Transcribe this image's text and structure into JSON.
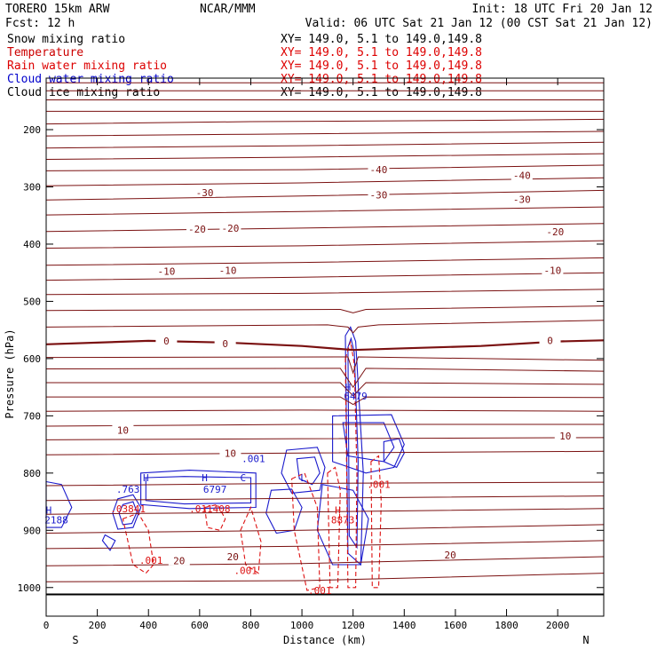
{
  "header": {
    "model": "TORERO  15km ARW",
    "center": "NCAR/MMM",
    "init": "Init: 18 UTC Fri 20 Jan 12",
    "fcst": "Fcst:   12 h",
    "valid": "Valid: 06 UTC Sat 21 Jan 12 (00 CST Sat 21 Jan 12)"
  },
  "legend": [
    {
      "name": "Snow mixing ratio",
      "xy": "XY= 149.0,  5.1 to 149.0,149.8",
      "color": "#000000"
    },
    {
      "name": "Temperature",
      "xy": "XY= 149.0,  5.1 to 149.0,149.8",
      "color": "#cc0000"
    },
    {
      "name": "Rain water mixing ratio",
      "xy": "XY= 149.0,  5.1 to 149.0,149.8",
      "color": "#dd0000"
    },
    {
      "name": "Cloud water mixing ratio",
      "xy": "XY= 149.0,  5.1 to 149.0,149.8",
      "color": "#0000cc"
    },
    {
      "name": "Cloud ice mixing ratio",
      "xy": "XY= 149.0,  5.1 to 149.0,149.8",
      "color": "#000000"
    }
  ],
  "colors": {
    "temperature": "#7a1010",
    "rain": "#dd1111",
    "cloud": "#1a1acc",
    "surface": "#000000"
  },
  "chart_data": {
    "type": "line",
    "xlabel": "Distance (km)",
    "ylabel": "Pressure (hPa)",
    "xlim": [
      0,
      2180
    ],
    "ylim": [
      1050,
      110
    ],
    "x_ticks": [
      0,
      200,
      400,
      600,
      800,
      1000,
      1200,
      1400,
      1600,
      1800,
      2000
    ],
    "y_ticks": [
      200,
      300,
      400,
      500,
      600,
      700,
      800,
      900,
      1000
    ],
    "x_end_labels": {
      "left": "S",
      "right": "N"
    },
    "surface_pressure": 1012,
    "isotherms": [
      {
        "x": [
          0,
          2180
        ],
        "y": [
          118,
          118
        ]
      },
      {
        "x": [
          0,
          2180
        ],
        "y": [
          132,
          132
        ]
      },
      {
        "x": [
          0,
          2180
        ],
        "y": [
          148,
          148
        ]
      },
      {
        "x": [
          0,
          2180
        ],
        "y": [
          168,
          168
        ]
      },
      {
        "x": [
          0,
          800,
          1600,
          2180
        ],
        "y": [
          190,
          186,
          184,
          182
        ]
      },
      {
        "x": [
          0,
          800,
          1600,
          2180
        ],
        "y": [
          211,
          208,
          205,
          203
        ]
      },
      {
        "x": [
          0,
          1000,
          2180
        ],
        "y": [
          232,
          228,
          222
        ]
      },
      {
        "x": [
          0,
          1000,
          2180
        ],
        "y": [
          252,
          248,
          242
        ]
      },
      {
        "x": [
          0,
          1000,
          2180
        ],
        "y": [
          272,
          270,
          262
        ]
      },
      {
        "x": [
          0,
          1000,
          2180
        ],
        "y": [
          298,
          293,
          284
        ]
      },
      {
        "x": [
          0,
          1000,
          2180
        ],
        "y": [
          323,
          316,
          306
        ]
      },
      {
        "x": [
          0,
          1000,
          2180
        ],
        "y": [
          349,
          343,
          335
        ]
      },
      {
        "x": [
          0,
          1000,
          2180
        ],
        "y": [
          378,
          372,
          364
        ]
      },
      {
        "x": [
          0,
          1000,
          2180
        ],
        "y": [
          407,
          403,
          394
        ]
      },
      {
        "x": [
          0,
          1000,
          2180
        ],
        "y": [
          437,
          432,
          424
        ]
      },
      {
        "x": [
          0,
          1000,
          2180
        ],
        "y": [
          463,
          458,
          450
        ]
      },
      {
        "x": [
          0,
          1000,
          2180
        ],
        "y": [
          488,
          486,
          479
        ]
      },
      {
        "x": [
          0,
          1150,
          1200,
          1250,
          2180
        ],
        "y": [
          516,
          514,
          520,
          514,
          508
        ]
      },
      {
        "x": [
          0,
          1100,
          1180,
          1200,
          1220,
          1300,
          2180
        ],
        "y": [
          545,
          541,
          545,
          555,
          545,
          541,
          533
        ]
      },
      {
        "x": [
          0,
          1180,
          1200,
          1220,
          2180
        ],
        "y": [
          598,
          597,
          625,
          597,
          603
        ]
      },
      {
        "x": [
          0,
          1150,
          1200,
          1250,
          2180
        ],
        "y": [
          618,
          617,
          650,
          617,
          622
        ]
      },
      {
        "x": [
          0,
          1150,
          1200,
          1250,
          2180
        ],
        "y": [
          642,
          642,
          665,
          642,
          645
        ]
      },
      {
        "x": [
          0,
          1150,
          1200,
          1250,
          2180
        ],
        "y": [
          667,
          667,
          680,
          667,
          668
        ]
      },
      {
        "x": [
          0,
          1000,
          2180
        ],
        "y": [
          692,
          690,
          692
        ]
      },
      {
        "x": [
          0,
          1000,
          2180
        ],
        "y": [
          718,
          715,
          715
        ]
      },
      {
        "x": [
          0,
          1000,
          2180
        ],
        "y": [
          742,
          740,
          738
        ]
      },
      {
        "x": [
          0,
          1000,
          2180
        ],
        "y": [
          768,
          765,
          762
        ]
      },
      {
        "x": [
          0,
          1000,
          2180
        ],
        "y": [
          822,
          818,
          816
        ]
      },
      {
        "x": [
          0,
          1000,
          2180
        ],
        "y": [
          848,
          844,
          840
        ]
      },
      {
        "x": [
          0,
          1000,
          2180
        ],
        "y": [
          872,
          868,
          862
        ]
      },
      {
        "x": [
          0,
          1000,
          2180
        ],
        "y": [
          905,
          900,
          890
        ]
      },
      {
        "x": [
          0,
          1000,
          2180
        ],
        "y": [
          932,
          928,
          918
        ]
      },
      {
        "x": [
          0,
          1000,
          2180
        ],
        "y": [
          962,
          958,
          946
        ]
      },
      {
        "x": [
          0,
          1000,
          2180
        ],
        "y": [
          990,
          988,
          975
        ]
      }
    ],
    "zero_isotherm": {
      "x": [
        0,
        400,
        700,
        1000,
        1200,
        1400,
        1700,
        2000,
        2180
      ],
      "y": [
        575,
        569,
        572,
        578,
        585,
        582,
        578,
        570,
        568
      ]
    },
    "temperature_labels": [
      {
        "text": "-40",
        "x": 1300,
        "y": 270
      },
      {
        "text": "-40",
        "x": 1860,
        "y": 280
      },
      {
        "text": "-30",
        "x": 620,
        "y": 310
      },
      {
        "text": "-30",
        "x": 1300,
        "y": 314
      },
      {
        "text": "-30",
        "x": 1860,
        "y": 322
      },
      {
        "text": "-20",
        "x": 590,
        "y": 374
      },
      {
        "text": "-20",
        "x": 720,
        "y": 372
      },
      {
        "text": "-20",
        "x": 1990,
        "y": 378
      },
      {
        "text": "-10",
        "x": 470,
        "y": 447
      },
      {
        "text": "-10",
        "x": 710,
        "y": 446
      },
      {
        "text": "-10",
        "x": 1980,
        "y": 446
      },
      {
        "text": "0",
        "x": 470,
        "y": 569
      },
      {
        "text": "0",
        "x": 700,
        "y": 574
      },
      {
        "text": "0",
        "x": 1970,
        "y": 568
      },
      {
        "text": "10",
        "x": 300,
        "y": 725
      },
      {
        "text": "10",
        "x": 720,
        "y": 765
      },
      {
        "text": "10",
        "x": 2030,
        "y": 735
      },
      {
        "text": "20",
        "x": 520,
        "y": 953
      },
      {
        "text": "20",
        "x": 730,
        "y": 946
      },
      {
        "text": "20",
        "x": 1580,
        "y": 943
      }
    ],
    "cloud_labels": [
      {
        "text": ".001",
        "x": 810,
        "y": 775
      },
      {
        "text": "H",
        "x": 390,
        "y": 808
      },
      {
        "text": "H",
        "x": 620,
        "y": 808
      },
      {
        "text": ".763",
        "x": 320,
        "y": 828
      },
      {
        "text": "6797",
        "x": 660,
        "y": 828
      },
      {
        "text": "H",
        "x": 10,
        "y": 865
      },
      {
        "text": "2188",
        "x": 40,
        "y": 882
      },
      {
        "text": "H",
        "x": 1180,
        "y": 650
      },
      {
        "text": "6479",
        "x": 1210,
        "y": 665
      },
      {
        "text": "C",
        "x": 770,
        "y": 808
      },
      {
        "text": "L",
        "x": 1005,
        "y": 808
      }
    ],
    "rain_labels": [
      {
        "text": ".001",
        "x": 1300,
        "y": 820
      },
      {
        "text": "H",
        "x": 1140,
        "y": 865
      },
      {
        "text": "8873",
        "x": 1160,
        "y": 882
      },
      {
        "text": ".011408",
        "x": 640,
        "y": 862
      },
      {
        "text": ".03841",
        "x": 320,
        "y": 862
      },
      {
        "text": ".001",
        "x": 410,
        "y": 952
      },
      {
        "text": ".001",
        "x": 780,
        "y": 970
      },
      {
        "text": ".001",
        "x": 1070,
        "y": 1005
      }
    ],
    "cloud_regions": [
      {
        "x": [
          370,
          560,
          820,
          820,
          560,
          370
        ],
        "y": [
          800,
          795,
          800,
          860,
          862,
          855
        ]
      },
      {
        "x": [
          390,
          540,
          800,
          800,
          540,
          390
        ],
        "y": [
          808,
          806,
          808,
          852,
          854,
          848
        ]
      },
      {
        "x": [
          280,
          340,
          370,
          340,
          280,
          260
        ],
        "y": [
          845,
          838,
          860,
          895,
          898,
          870
        ]
      },
      {
        "x": [
          300,
          340,
          355,
          335,
          300,
          285
        ],
        "y": [
          855,
          850,
          868,
          888,
          890,
          870
        ]
      },
      {
        "x": [
          230,
          270,
          250,
          220
        ],
        "y": [
          908,
          918,
          935,
          918
        ]
      },
      {
        "x": [
          0,
          60,
          100,
          60,
          0
        ],
        "y": [
          815,
          820,
          860,
          895,
          895
        ]
      },
      {
        "x": [
          940,
          1060,
          1090,
          1070,
          960,
          920
        ],
        "y": [
          760,
          755,
          790,
          830,
          835,
          800
        ]
      },
      {
        "x": [
          980,
          1050,
          1070,
          1040,
          990
        ],
        "y": [
          775,
          772,
          800,
          820,
          810
        ]
      },
      {
        "x": [
          1120,
          1350,
          1400,
          1360,
          1250,
          1120
        ],
        "y": [
          700,
          698,
          750,
          790,
          800,
          780
        ]
      },
      {
        "x": [
          1160,
          1320,
          1360,
          1320,
          1180
        ],
        "y": [
          712,
          712,
          755,
          780,
          770
        ]
      },
      {
        "x": [
          1170,
          1190,
          1210,
          1240,
          1230,
          1180
        ],
        "y": [
          560,
          545,
          570,
          800,
          960,
          940
        ]
      },
      {
        "x": [
          1180,
          1192,
          1205,
          1220,
          1215,
          1185
        ],
        "y": [
          580,
          565,
          590,
          780,
          930,
          910
        ]
      },
      {
        "x": [
          1080,
          1200,
          1260,
          1230,
          1120,
          1060
        ],
        "y": [
          820,
          830,
          880,
          960,
          960,
          900
        ]
      },
      {
        "x": [
          880,
          960,
          1000,
          970,
          900,
          860
        ],
        "y": [
          830,
          828,
          860,
          900,
          905,
          870
        ]
      },
      {
        "x": [
          1320,
          1380,
          1400,
          1370,
          1320
        ],
        "y": [
          745,
          740,
          765,
          790,
          780
        ]
      }
    ],
    "rain_regions": [
      {
        "x": [
          1170,
          1190,
          1205,
          1215,
          1210,
          1180
        ],
        "y": [
          600,
          570,
          610,
          800,
          1000,
          1000
        ]
      },
      {
        "x": [
          1100,
          1130,
          1150,
          1140,
          1110
        ],
        "y": [
          800,
          790,
          830,
          1000,
          1000
        ]
      },
      {
        "x": [
          1270,
          1300,
          1310,
          1300,
          1275
        ],
        "y": [
          780,
          770,
          850,
          1000,
          1000
        ]
      },
      {
        "x": [
          960,
          1010,
          1060,
          1070,
          1020,
          970
        ],
        "y": [
          810,
          800,
          860,
          1000,
          1005,
          900
        ]
      },
      {
        "x": [
          300,
          360,
          400,
          420,
          390,
          340,
          320
        ],
        "y": [
          880,
          870,
          900,
          960,
          975,
          960,
          920
        ]
      },
      {
        "x": [
          760,
          800,
          840,
          830,
          780
        ],
        "y": [
          900,
          860,
          920,
          975,
          960
        ]
      },
      {
        "x": [
          620,
          670,
          700,
          680,
          630
        ],
        "y": [
          860,
          855,
          880,
          900,
          895
        ]
      }
    ]
  }
}
